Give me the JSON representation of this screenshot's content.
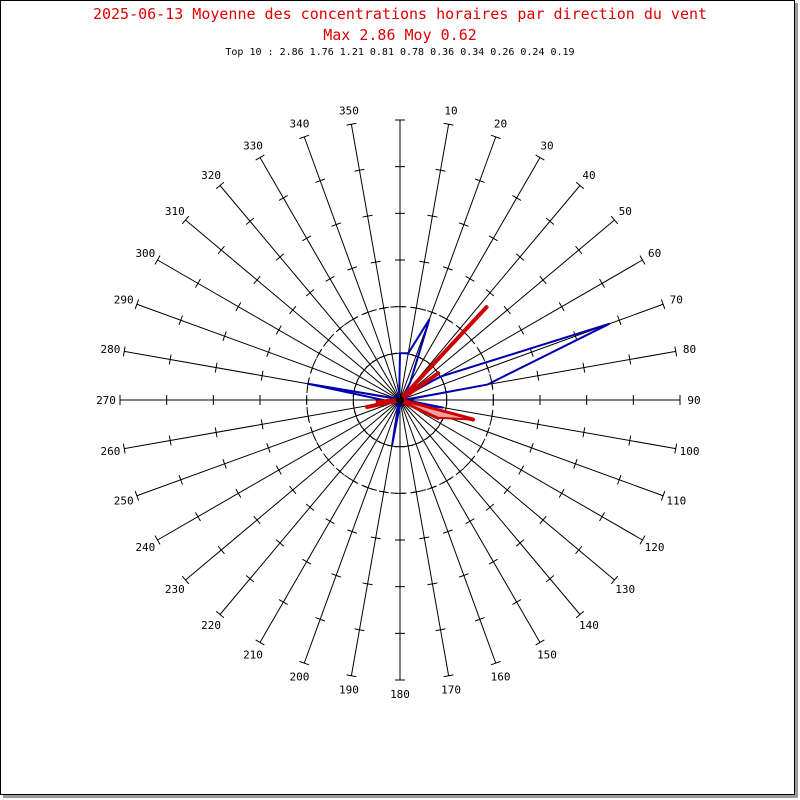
{
  "title_line1": "2025-06-13 Moyenne des concentrations horaires par direction du vent",
  "title_line2": "Max 2.86 Moy 0.62",
  "top10_text": "Top 10 : 2.86 1.76 1.21 0.81 0.78 0.36 0.34 0.26 0.24 0.19",
  "colors": {
    "title": "#e00000",
    "axes": "#000000",
    "mean_line": "#0000b0",
    "max_line": "#cc0000",
    "max_fill": "#f4a0a0"
  },
  "chart_data": {
    "type": "polar-rose",
    "title": "2025-06-13 Moyenne des concentrations horaires par direction du vent",
    "subtitle": "Max 2.86 Moy 0.62",
    "top10": [
      2.86,
      1.76,
      1.21,
      0.81,
      0.78,
      0.36,
      0.34,
      0.26,
      0.24,
      0.19
    ],
    "direction_labels": [
      "10",
      "20",
      "30",
      "40",
      "50",
      "60",
      "70",
      "80",
      "90",
      "100",
      "110",
      "120",
      "130",
      "140",
      "150",
      "160",
      "170",
      "180",
      "190",
      "200",
      "210",
      "220",
      "230",
      "240",
      "250",
      "260",
      "270",
      "280",
      "290",
      "300",
      "310",
      "320",
      "330",
      "340",
      "350"
    ],
    "radial_max": 3.0,
    "reference_circles": [
      0.5,
      1.0
    ],
    "series": [
      {
        "style": "mean-polygon",
        "points": [
          {
            "dir": 0,
            "value": 0.5
          },
          {
            "dir": 10,
            "value": 0.51
          },
          {
            "dir": 20,
            "value": 0.92
          },
          {
            "dir": 30,
            "value": 0.22
          },
          {
            "dir": 40,
            "value": 0.05
          },
          {
            "dir": 50,
            "value": 0.08
          },
          {
            "dir": 60,
            "value": 0.5
          },
          {
            "dir": 70,
            "value": 2.39
          },
          {
            "dir": 80,
            "value": 0.95
          },
          {
            "dir": 90,
            "value": 0.05
          },
          {
            "dir": 100,
            "value": 0.47
          },
          {
            "dir": 110,
            "value": 0.1
          },
          {
            "dir": 120,
            "value": 0.05
          },
          {
            "dir": 130,
            "value": 0.05
          },
          {
            "dir": 140,
            "value": 0.05
          },
          {
            "dir": 150,
            "value": 0.05
          },
          {
            "dir": 160,
            "value": 0.05
          },
          {
            "dir": 170,
            "value": 0.05
          },
          {
            "dir": 180,
            "value": 0.05
          },
          {
            "dir": 190,
            "value": 0.49
          },
          {
            "dir": 200,
            "value": 0.05
          },
          {
            "dir": 210,
            "value": 0.05
          },
          {
            "dir": 220,
            "value": 0.05
          },
          {
            "dir": 230,
            "value": 0.05
          },
          {
            "dir": 240,
            "value": 0.05
          },
          {
            "dir": 250,
            "value": 0.05
          },
          {
            "dir": 260,
            "value": 0.1
          },
          {
            "dir": 270,
            "value": 0.18
          },
          {
            "dir": 280,
            "value": 1.01
          },
          {
            "dir": 290,
            "value": 0.05
          },
          {
            "dir": 300,
            "value": 0.05
          },
          {
            "dir": 310,
            "value": 0.05
          },
          {
            "dir": 320,
            "value": 0.05
          },
          {
            "dir": 330,
            "value": 0.05
          },
          {
            "dir": 340,
            "value": 0.05
          },
          {
            "dir": 350,
            "value": 0.05
          }
        ]
      },
      {
        "style": "max-spikes",
        "points": [
          {
            "dir": 43,
            "value": 1.36
          },
          {
            "dir": 55,
            "value": 0.5
          },
          {
            "dir": 105,
            "value": 0.81
          },
          {
            "dir": 115,
            "value": 0.45
          },
          {
            "dir": 258,
            "value": 0.36
          },
          {
            "dir": 265,
            "value": 0.24
          }
        ]
      }
    ]
  }
}
